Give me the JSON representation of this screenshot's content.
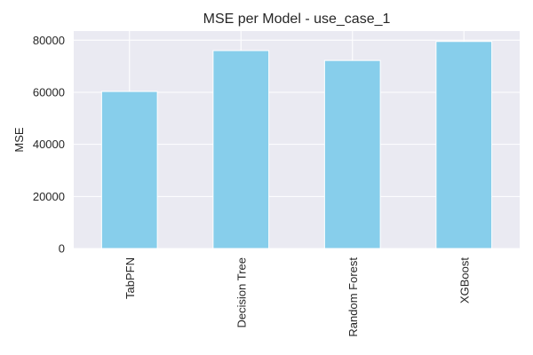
{
  "chart_data": {
    "type": "bar",
    "title": "MSE per Model - use_case_1",
    "xlabel": "",
    "ylabel": "MSE",
    "categories": [
      "TabPFN",
      "Decision Tree",
      "Random Forest",
      "XGBoost"
    ],
    "values": [
      60300,
      76000,
      72200,
      79500
    ],
    "ylim": [
      0,
      83500
    ],
    "yticks": [
      0,
      20000,
      40000,
      60000,
      80000
    ],
    "grid": true,
    "bar_color": "#87CEEB",
    "background_color": "#EAEAF2",
    "grid_color": "#FFFFFF"
  }
}
